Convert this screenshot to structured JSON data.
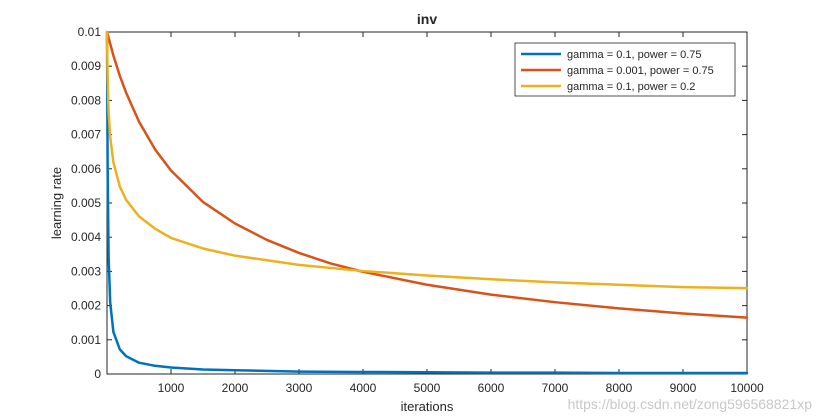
{
  "chart_data": {
    "type": "line",
    "title": "inv",
    "xlabel": "iterations",
    "ylabel": "learning rate",
    "xlim": [
      0,
      10000
    ],
    "ylim": [
      0,
      0.01
    ],
    "x_ticks": [
      1000,
      2000,
      3000,
      4000,
      5000,
      6000,
      7000,
      8000,
      9000,
      10000
    ],
    "x_tick_labels": [
      "1000",
      "2000",
      "3000",
      "4000",
      "5000",
      "6000",
      "7000",
      "8000",
      "9000",
      "10000"
    ],
    "y_ticks": [
      0,
      0.001,
      0.002,
      0.003,
      0.004,
      0.005,
      0.006,
      0.007,
      0.008,
      0.009,
      0.01
    ],
    "y_tick_labels": [
      "0",
      "0.001",
      "0.002",
      "0.003",
      "0.004",
      "0.005",
      "0.006",
      "0.007",
      "0.008",
      "0.009",
      "0.01"
    ],
    "grid": false,
    "legend_position": "top-right",
    "series": [
      {
        "name": "gamma = 0.1, power = 0.75",
        "color": "#0072BD",
        "x": [
          0,
          10,
          25,
          50,
          100,
          200,
          300,
          500,
          750,
          1000,
          1500,
          2000,
          3000,
          4000,
          5000,
          6000,
          7000,
          8000,
          9000,
          10000
        ],
        "y": [
          0.01,
          0.00595,
          0.00342,
          0.00209,
          0.00123,
          0.00072,
          0.00052,
          0.00033,
          0.00024,
          0.00019,
          0.00013,
          0.00011,
          7e-05,
          6e-05,
          5e-05,
          4e-05,
          4e-05,
          3e-05,
          3e-05,
          3e-05
        ]
      },
      {
        "name": "gamma = 0.001, power = 0.75",
        "color": "#D95319",
        "x": [
          0,
          100,
          200,
          300,
          500,
          750,
          1000,
          1500,
          2000,
          2500,
          3000,
          3500,
          4000,
          5000,
          6000,
          7000,
          8000,
          9000,
          10000
        ],
        "y": [
          0.01,
          0.00931,
          0.00872,
          0.00822,
          0.00738,
          0.00657,
          0.00595,
          0.00503,
          0.0044,
          0.00392,
          0.00354,
          0.00323,
          0.00299,
          0.00261,
          0.00232,
          0.0021,
          0.00192,
          0.00177,
          0.00165
        ]
      },
      {
        "name": "gamma = 0.1, power = 0.2",
        "color": "#EDB120",
        "x": [
          0,
          10,
          25,
          50,
          100,
          200,
          300,
          500,
          750,
          1000,
          1500,
          2000,
          3000,
          4000,
          5000,
          6000,
          7000,
          8000,
          9000,
          10000
        ],
        "y": [
          0.01,
          0.0087,
          0.00765,
          0.00693,
          0.00619,
          0.00548,
          0.00509,
          0.00461,
          0.00425,
          0.00398,
          0.00367,
          0.00346,
          0.00319,
          0.00301,
          0.00288,
          0.00277,
          0.00268,
          0.00261,
          0.00254,
          0.00251
        ]
      }
    ]
  },
  "watermark": "https://blog.csdn.net/zong596568821xp"
}
